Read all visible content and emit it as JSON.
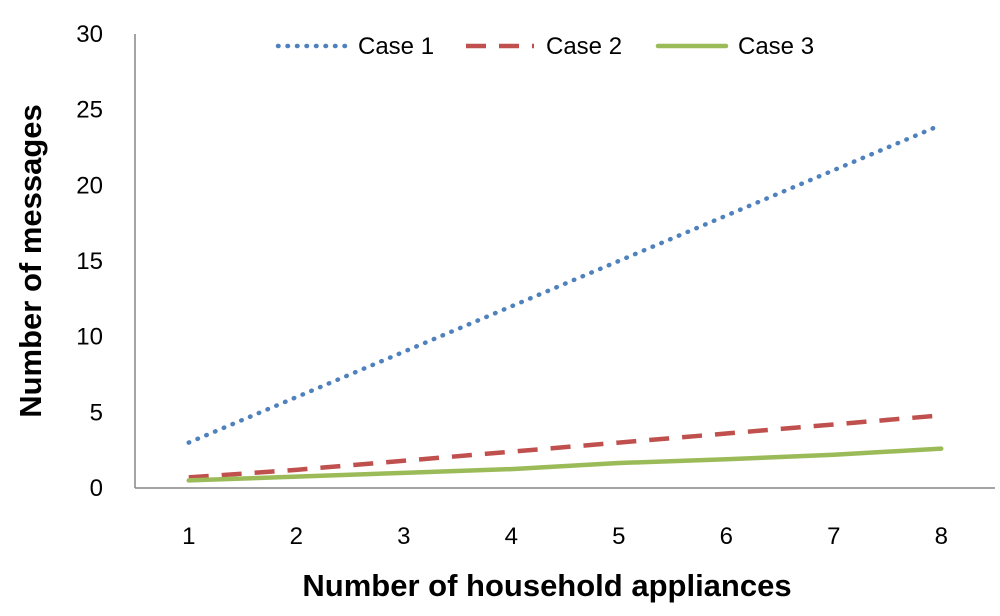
{
  "chart_data": {
    "type": "line",
    "title": "",
    "xlabel": "Number of household appliances",
    "ylabel": "Number of messages",
    "x": [
      1,
      2,
      3,
      4,
      5,
      6,
      7,
      8
    ],
    "x_tick_labels": [
      "1",
      "2",
      "3",
      "4",
      "5",
      "6",
      "7",
      "8"
    ],
    "ylim": [
      0,
      30
    ],
    "y_ticks": [
      0,
      5,
      10,
      15,
      20,
      25,
      30
    ],
    "y_tick_labels": [
      "0",
      "5",
      "10",
      "15",
      "20",
      "25",
      "30"
    ],
    "grid": false,
    "legend_position": "top",
    "series": [
      {
        "name": "Case 1",
        "values": [
          3,
          6,
          9,
          12,
          15,
          18,
          21,
          24
        ],
        "color": "#4f81bd",
        "line_style": "dotted"
      },
      {
        "name": "Case 2",
        "values": [
          0.7,
          1.2,
          1.8,
          2.4,
          3.0,
          3.6,
          4.2,
          4.8
        ],
        "color": "#c0504d",
        "line_style": "dashed"
      },
      {
        "name": "Case 3",
        "values": [
          0.5,
          0.75,
          1.0,
          1.25,
          1.65,
          1.9,
          2.2,
          2.6
        ],
        "color": "#9bbb59",
        "line_style": "solid"
      }
    ]
  }
}
